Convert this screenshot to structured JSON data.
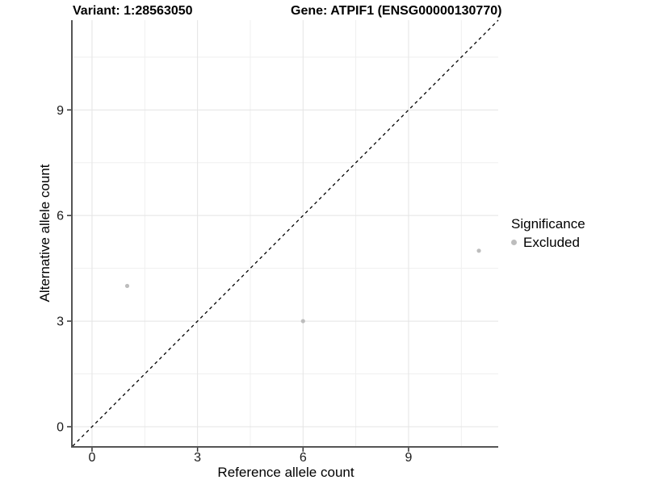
{
  "chart_data": {
    "type": "scatter",
    "title_left": "Variant: 1:28563050",
    "title_right": "Gene: ATPIF1 (ENSG00000130770)",
    "xlabel": "Reference allele count",
    "ylabel": "Alternative allele count",
    "xlim": [
      -0.55,
      11.55
    ],
    "ylim": [
      -0.55,
      11.55
    ],
    "x_ticks": [
      0,
      3,
      6,
      9
    ],
    "y_ticks": [
      0,
      3,
      6,
      9
    ],
    "x_minor_ticks": [
      1.5,
      4.5,
      7.5,
      10.5
    ],
    "y_minor_ticks": [
      1.5,
      4.5,
      7.5,
      10.5
    ],
    "grid": "major+minor",
    "identity_line": {
      "style": "dashed",
      "slope": 1,
      "intercept": 0,
      "color": "#000000"
    },
    "series": [
      {
        "name": "Excluded",
        "color": "#bdbdbd",
        "points": [
          {
            "x": 1,
            "y": 4
          },
          {
            "x": 6,
            "y": 3
          },
          {
            "x": 11,
            "y": 5
          }
        ]
      }
    ],
    "legend": {
      "title": "Significance",
      "position": "right",
      "entries": [
        {
          "label": "Excluded",
          "color": "#bdbdbd"
        }
      ]
    },
    "colors": {
      "background": "#ffffff",
      "grid_major": "#e4e4e4",
      "grid_minor": "#efefef",
      "axis_line": "#555555",
      "tick_mark": "#333333",
      "point": "#bdbdbd"
    }
  }
}
